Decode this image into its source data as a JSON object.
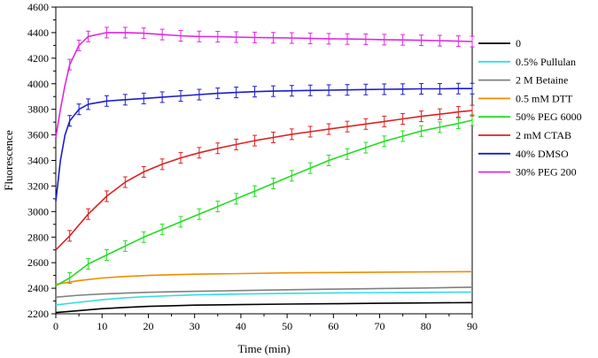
{
  "chart_data": {
    "type": "line",
    "title": "",
    "xlabel": "Time (min)",
    "ylabel": "Fluorescence",
    "xlim": [
      0,
      90
    ],
    "ylim": [
      2200,
      4600
    ],
    "xticks": [
      0,
      10,
      20,
      30,
      40,
      50,
      60,
      70,
      80,
      90
    ],
    "yticks": [
      2200,
      2400,
      2600,
      2800,
      3000,
      3200,
      3400,
      3600,
      3800,
      4000,
      4200,
      4400,
      4600
    ],
    "legend_position": "right",
    "series": [
      {
        "name": "0",
        "color": "#000000",
        "error_bars": false,
        "points": [
          [
            0,
            2210
          ],
          [
            5,
            2225
          ],
          [
            10,
            2240
          ],
          [
            15,
            2250
          ],
          [
            20,
            2258
          ],
          [
            25,
            2263
          ],
          [
            30,
            2268
          ],
          [
            40,
            2272
          ],
          [
            50,
            2276
          ],
          [
            60,
            2279
          ],
          [
            70,
            2282
          ],
          [
            80,
            2285
          ],
          [
            90,
            2288
          ]
        ]
      },
      {
        "name": "0.5% Pullulan",
        "color": "#33dddd",
        "error_bars": false,
        "points": [
          [
            0,
            2270
          ],
          [
            5,
            2290
          ],
          [
            10,
            2310
          ],
          [
            15,
            2325
          ],
          [
            20,
            2335
          ],
          [
            25,
            2342
          ],
          [
            30,
            2348
          ],
          [
            40,
            2355
          ],
          [
            50,
            2360
          ],
          [
            60,
            2363
          ],
          [
            70,
            2366
          ],
          [
            80,
            2368
          ],
          [
            90,
            2370
          ]
        ]
      },
      {
        "name": "2 M Betaine",
        "color": "#808080",
        "error_bars": false,
        "points": [
          [
            0,
            2330
          ],
          [
            5,
            2345
          ],
          [
            10,
            2355
          ],
          [
            15,
            2362
          ],
          [
            20,
            2368
          ],
          [
            25,
            2372
          ],
          [
            30,
            2376
          ],
          [
            40,
            2382
          ],
          [
            50,
            2388
          ],
          [
            60,
            2393
          ],
          [
            70,
            2398
          ],
          [
            80,
            2402
          ],
          [
            90,
            2408
          ]
        ]
      },
      {
        "name": "0.5 mM DTT",
        "color": "#f08c00",
        "error_bars": false,
        "points": [
          [
            0,
            2430
          ],
          [
            5,
            2460
          ],
          [
            10,
            2480
          ],
          [
            15,
            2492
          ],
          [
            20,
            2500
          ],
          [
            25,
            2506
          ],
          [
            30,
            2510
          ],
          [
            40,
            2515
          ],
          [
            50,
            2520
          ],
          [
            60,
            2523
          ],
          [
            70,
            2526
          ],
          [
            80,
            2528
          ],
          [
            90,
            2530
          ]
        ]
      },
      {
        "name": "50% PEG 6000",
        "color": "#22dd22",
        "error_bars": true,
        "points": [
          [
            0,
            2420
          ],
          [
            3,
            2480
          ],
          [
            7,
            2590
          ],
          [
            11,
            2660
          ],
          [
            15,
            2730
          ],
          [
            19,
            2800
          ],
          [
            23,
            2860
          ],
          [
            27,
            2920
          ],
          [
            31,
            2980
          ],
          [
            35,
            3040
          ],
          [
            39,
            3100
          ],
          [
            43,
            3160
          ],
          [
            47,
            3220
          ],
          [
            51,
            3280
          ],
          [
            55,
            3340
          ],
          [
            59,
            3400
          ],
          [
            63,
            3450
          ],
          [
            67,
            3500
          ],
          [
            71,
            3550
          ],
          [
            75,
            3590
          ],
          [
            79,
            3630
          ],
          [
            83,
            3660
          ],
          [
            87,
            3690
          ],
          [
            90,
            3715
          ]
        ]
      },
      {
        "name": "2 mM CTAB",
        "color": "#dd2222",
        "error_bars": true,
        "points": [
          [
            0,
            2700
          ],
          [
            3,
            2810
          ],
          [
            7,
            2980
          ],
          [
            11,
            3120
          ],
          [
            15,
            3230
          ],
          [
            19,
            3310
          ],
          [
            23,
            3370
          ],
          [
            27,
            3420
          ],
          [
            31,
            3460
          ],
          [
            35,
            3495
          ],
          [
            39,
            3525
          ],
          [
            43,
            3555
          ],
          [
            47,
            3580
          ],
          [
            51,
            3605
          ],
          [
            55,
            3625
          ],
          [
            59,
            3645
          ],
          [
            63,
            3665
          ],
          [
            67,
            3685
          ],
          [
            71,
            3705
          ],
          [
            75,
            3725
          ],
          [
            79,
            3745
          ],
          [
            83,
            3762
          ],
          [
            87,
            3780
          ],
          [
            90,
            3790
          ]
        ]
      },
      {
        "name": "40% DMSO",
        "color": "#1c1ccc",
        "error_bars": true,
        "points": [
          [
            0,
            3080
          ],
          [
            1,
            3400
          ],
          [
            2,
            3600
          ],
          [
            3,
            3710
          ],
          [
            5,
            3800
          ],
          [
            7,
            3840
          ],
          [
            11,
            3865
          ],
          [
            15,
            3875
          ],
          [
            19,
            3885
          ],
          [
            23,
            3895
          ],
          [
            27,
            3905
          ],
          [
            31,
            3915
          ],
          [
            35,
            3925
          ],
          [
            39,
            3932
          ],
          [
            43,
            3938
          ],
          [
            47,
            3942
          ],
          [
            51,
            3945
          ],
          [
            55,
            3948
          ],
          [
            59,
            3950
          ],
          [
            63,
            3952
          ],
          [
            67,
            3955
          ],
          [
            71,
            3957
          ],
          [
            75,
            3958
          ],
          [
            79,
            3960
          ],
          [
            83,
            3960
          ],
          [
            87,
            3962
          ],
          [
            90,
            3962
          ]
        ]
      },
      {
        "name": "30% PEG 200",
        "color": "#e028e0",
        "error_bars": true,
        "points": [
          [
            0,
            3580
          ],
          [
            1,
            3800
          ],
          [
            2,
            3990
          ],
          [
            3,
            4150
          ],
          [
            5,
            4300
          ],
          [
            7,
            4370
          ],
          [
            11,
            4400
          ],
          [
            15,
            4400
          ],
          [
            19,
            4395
          ],
          [
            23,
            4385
          ],
          [
            27,
            4375
          ],
          [
            31,
            4370
          ],
          [
            35,
            4368
          ],
          [
            39,
            4365
          ],
          [
            43,
            4362
          ],
          [
            47,
            4360
          ],
          [
            51,
            4358
          ],
          [
            55,
            4355
          ],
          [
            59,
            4352
          ],
          [
            63,
            4350
          ],
          [
            67,
            4348
          ],
          [
            71,
            4345
          ],
          [
            75,
            4343
          ],
          [
            79,
            4340
          ],
          [
            83,
            4337
          ],
          [
            87,
            4333
          ],
          [
            90,
            4330
          ]
        ]
      }
    ]
  }
}
